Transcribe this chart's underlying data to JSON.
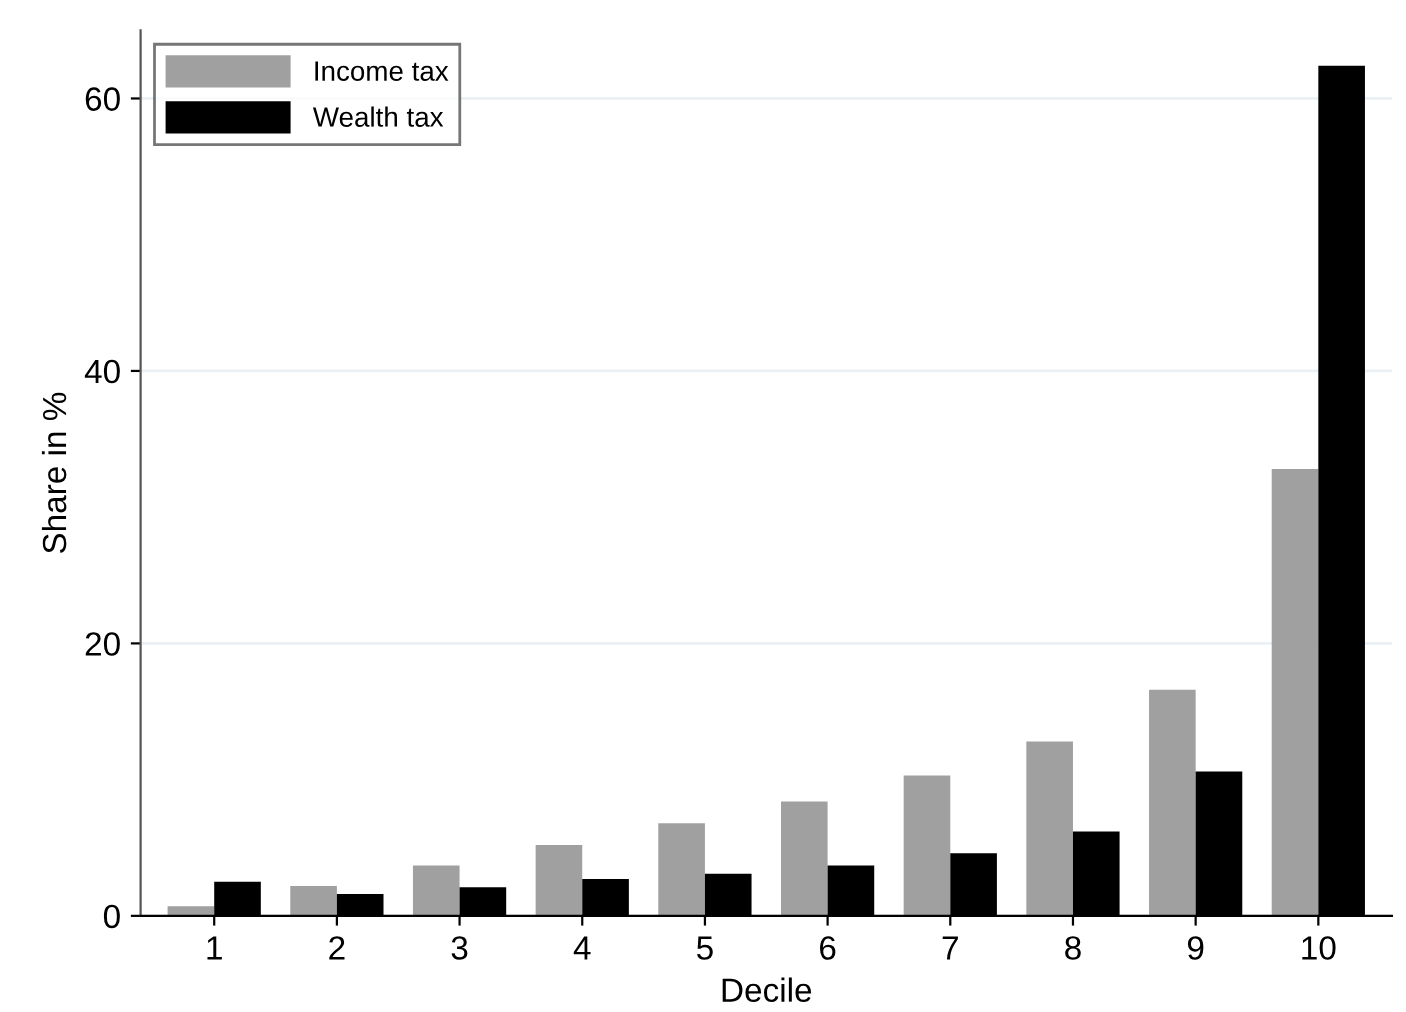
{
  "chart_data": {
    "type": "bar",
    "xlabel": "Decile",
    "ylabel": "Share in %",
    "categories": [
      "1",
      "2",
      "3",
      "4",
      "5",
      "6",
      "7",
      "8",
      "9",
      "10"
    ],
    "series": [
      {
        "name": "Income tax",
        "color": "#a0a0a0",
        "values": [
          0.7,
          2.2,
          3.7,
          5.2,
          6.8,
          8.4,
          10.3,
          12.8,
          16.6,
          32.8
        ]
      },
      {
        "name": "Wealth tax",
        "color": "#000000",
        "values": [
          2.5,
          1.6,
          2.1,
          2.7,
          3.1,
          3.7,
          4.6,
          6.2,
          10.6,
          62.4
        ]
      }
    ],
    "ylim": [
      0,
      65
    ],
    "yticks": [
      0,
      20,
      40,
      60
    ],
    "grid": "y",
    "legend": "top left"
  }
}
